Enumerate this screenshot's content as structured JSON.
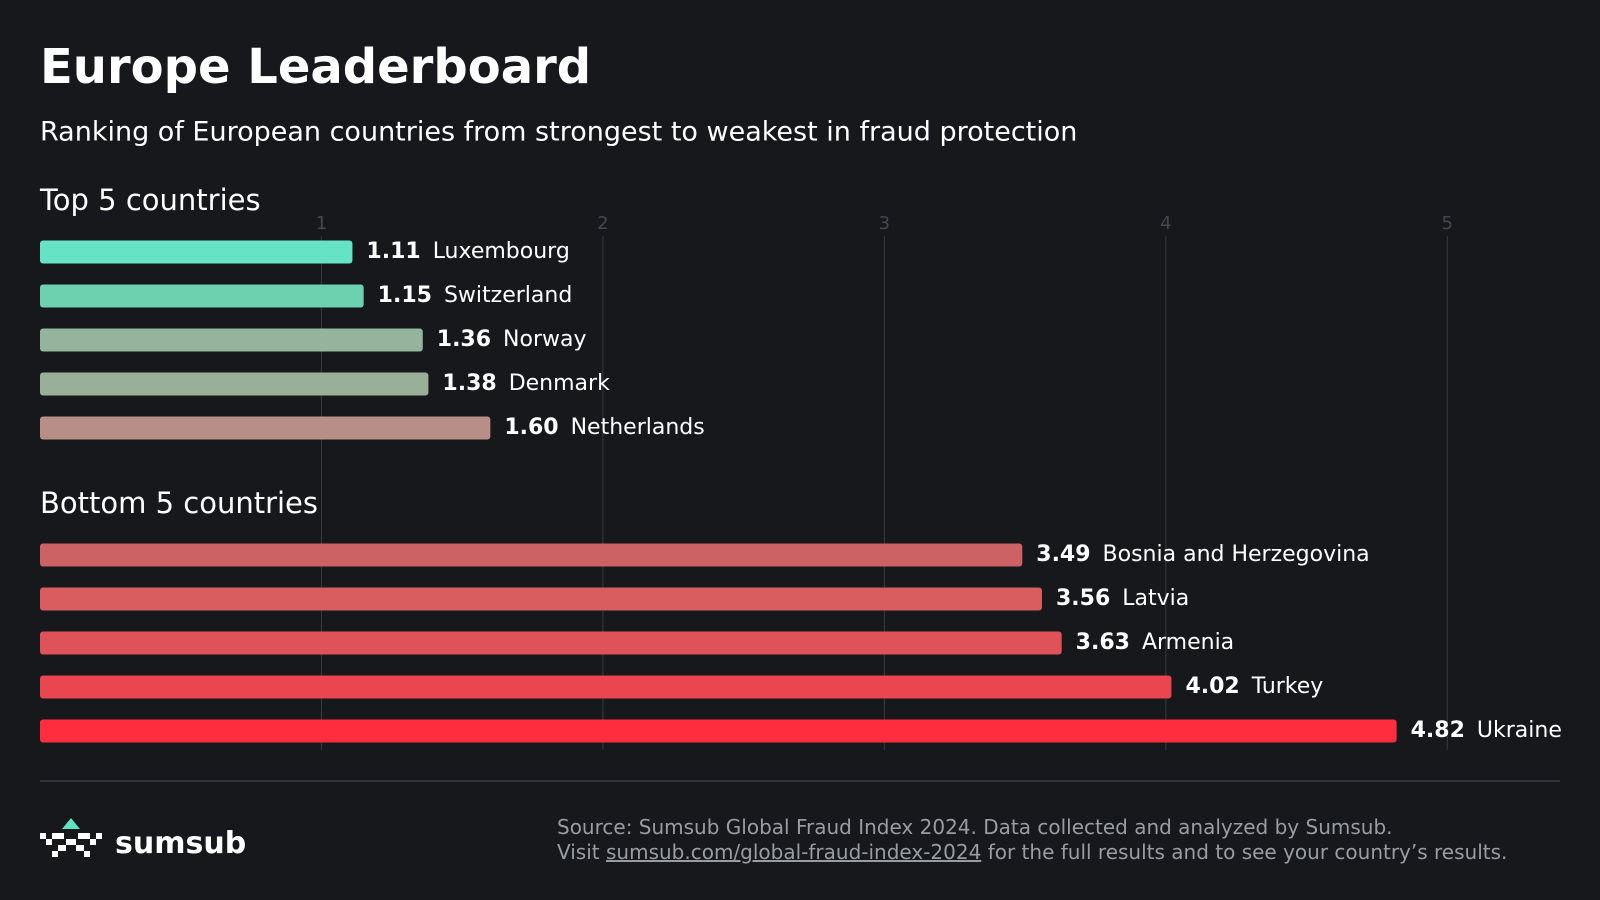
{
  "chart_data": {
    "type": "bar",
    "orientation": "horizontal",
    "title": "Europe Leaderboard",
    "subtitle": "Ranking of European countries from strongest to weakest in fraud protection",
    "xlim": [
      0,
      5.5
    ],
    "xticks": [
      1,
      2,
      3,
      4,
      5
    ],
    "grid": true,
    "groups": [
      {
        "title": "Top 5 countries",
        "categories": [
          "Luxembourg",
          "Switzerland",
          "Norway",
          "Denmark",
          "Netherlands"
        ],
        "values": [
          1.11,
          1.15,
          1.36,
          1.38,
          1.6
        ],
        "value_labels": [
          "1.11",
          "1.15",
          "1.36",
          "1.38",
          "1.60"
        ],
        "colors": [
          "#66e3c4",
          "#6dd0ae",
          "#94b49d",
          "#9aaf98",
          "#b78f88"
        ]
      },
      {
        "title": "Bottom 5 countries",
        "categories": [
          "Bosnia and Herzegovina",
          "Latvia",
          "Armenia",
          "Turkey",
          "Ukraine"
        ],
        "values": [
          3.49,
          3.56,
          3.63,
          4.02,
          4.82
        ],
        "value_labels": [
          "3.49",
          "3.56",
          "3.63",
          "4.02",
          "4.82"
        ],
        "colors": [
          "#cc6263",
          "#d95c5f",
          "#e0525a",
          "#ea4550",
          "#ff2d3d"
        ]
      }
    ]
  },
  "footer": {
    "brand": "sumsub",
    "source": "Source: Sumsub Global Fraud Index 2024. Data collected and analyzed by Sumsub.",
    "visit_prefix": "Visit",
    "link": "sumsub.com/global-fraud-index-2024",
    "visit_suffix": "for the full results and to see your country’s results."
  }
}
